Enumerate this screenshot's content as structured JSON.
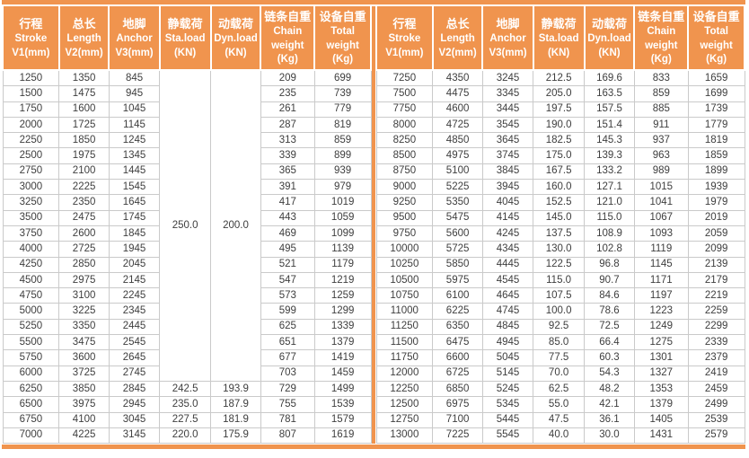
{
  "table": {
    "header_columns": [
      {
        "lines": [
          "行程",
          "Stroke",
          "V1(mm)"
        ]
      },
      {
        "lines": [
          "总长",
          "Length",
          "V2(mm)"
        ]
      },
      {
        "lines": [
          "地脚",
          "Anchor",
          "V3(mm)"
        ]
      },
      {
        "lines": [
          "静载荷",
          "Sta.load",
          "(KN)"
        ]
      },
      {
        "lines": [
          "动载荷",
          "Dyn.load",
          "(KN)"
        ]
      },
      {
        "lines": [
          "链条自重",
          "Chain",
          "weight",
          "(Kg)"
        ]
      },
      {
        "lines": [
          "设备自重",
          "Total",
          "weight",
          "(Kg)"
        ]
      }
    ],
    "left": {
      "merged": {
        "sta_load": "250.0",
        "dyn_load": "200.0",
        "row_span": 20
      },
      "rows": [
        [
          "1250",
          "1350",
          "845",
          "",
          "",
          "209",
          "699"
        ],
        [
          "1500",
          "1475",
          "945",
          "",
          "",
          "235",
          "739"
        ],
        [
          "1750",
          "1600",
          "1045",
          "",
          "",
          "261",
          "779"
        ],
        [
          "2000",
          "1725",
          "1145",
          "",
          "",
          "287",
          "819"
        ],
        [
          "2250",
          "1850",
          "1245",
          "",
          "",
          "313",
          "859"
        ],
        [
          "2500",
          "1975",
          "1345",
          "",
          "",
          "339",
          "899"
        ],
        [
          "2750",
          "2100",
          "1445",
          "",
          "",
          "365",
          "939"
        ],
        [
          "3000",
          "2225",
          "1545",
          "",
          "",
          "391",
          "979"
        ],
        [
          "3250",
          "2350",
          "1645",
          "",
          "",
          "417",
          "1019"
        ],
        [
          "3500",
          "2475",
          "1745",
          "",
          "",
          "443",
          "1059"
        ],
        [
          "3750",
          "2600",
          "1845",
          "",
          "",
          "469",
          "1099"
        ],
        [
          "4000",
          "2725",
          "1945",
          "",
          "",
          "495",
          "1139"
        ],
        [
          "4250",
          "2850",
          "2045",
          "",
          "",
          "521",
          "1179"
        ],
        [
          "4500",
          "2975",
          "2145",
          "",
          "",
          "547",
          "1219"
        ],
        [
          "4750",
          "3100",
          "2245",
          "",
          "",
          "573",
          "1259"
        ],
        [
          "5000",
          "3225",
          "2345",
          "",
          "",
          "599",
          "1299"
        ],
        [
          "5250",
          "3350",
          "2445",
          "",
          "",
          "625",
          "1339"
        ],
        [
          "5500",
          "3475",
          "2545",
          "",
          "",
          "651",
          "1379"
        ],
        [
          "5750",
          "3600",
          "2645",
          "",
          "",
          "677",
          "1419"
        ],
        [
          "6000",
          "3725",
          "2745",
          "",
          "",
          "703",
          "1459"
        ],
        [
          "6250",
          "3850",
          "2845",
          "242.5",
          "193.9",
          "729",
          "1499"
        ],
        [
          "6500",
          "3975",
          "2945",
          "235.0",
          "187.9",
          "755",
          "1539"
        ],
        [
          "6750",
          "4100",
          "3045",
          "227.5",
          "181.9",
          "781",
          "1579"
        ],
        [
          "7000",
          "4225",
          "3145",
          "220.0",
          "175.9",
          "807",
          "1619"
        ]
      ]
    },
    "right": {
      "rows": [
        [
          "7250",
          "4350",
          "3245",
          "212.5",
          "169.6",
          "833",
          "1659"
        ],
        [
          "7500",
          "4475",
          "3345",
          "205.0",
          "163.5",
          "859",
          "1699"
        ],
        [
          "7750",
          "4600",
          "3445",
          "197.5",
          "157.5",
          "885",
          "1739"
        ],
        [
          "8000",
          "4725",
          "3545",
          "190.0",
          "151.4",
          "911",
          "1779"
        ],
        [
          "8250",
          "4850",
          "3645",
          "182.5",
          "145.3",
          "937",
          "1819"
        ],
        [
          "8500",
          "4975",
          "3745",
          "175.0",
          "139.3",
          "963",
          "1859"
        ],
        [
          "8750",
          "5100",
          "3845",
          "167.5",
          "133.2",
          "989",
          "1899"
        ],
        [
          "9000",
          "5225",
          "3945",
          "160.0",
          "127.1",
          "1015",
          "1939"
        ],
        [
          "9250",
          "5350",
          "4045",
          "152.5",
          "121.0",
          "1041",
          "1979"
        ],
        [
          "9500",
          "5475",
          "4145",
          "145.0",
          "115.0",
          "1067",
          "2019"
        ],
        [
          "9750",
          "5600",
          "4245",
          "137.5",
          "108.9",
          "1093",
          "2059"
        ],
        [
          "10000",
          "5725",
          "4345",
          "130.0",
          "102.8",
          "1119",
          "2099"
        ],
        [
          "10250",
          "5850",
          "4445",
          "122.5",
          "96.8",
          "1145",
          "2139"
        ],
        [
          "10500",
          "5975",
          "4545",
          "115.0",
          "90.7",
          "1171",
          "2179"
        ],
        [
          "10750",
          "6100",
          "4645",
          "107.5",
          "84.6",
          "1197",
          "2219"
        ],
        [
          "11000",
          "6225",
          "4745",
          "100.0",
          "78.6",
          "1223",
          "2259"
        ],
        [
          "11250",
          "6350",
          "4845",
          "92.5",
          "72.5",
          "1249",
          "2299"
        ],
        [
          "11500",
          "6475",
          "4945",
          "85.0",
          "66.4",
          "1275",
          "2339"
        ],
        [
          "11750",
          "6600",
          "5045",
          "77.5",
          "60.3",
          "1301",
          "2379"
        ],
        [
          "12000",
          "6725",
          "5145",
          "70.0",
          "54.3",
          "1327",
          "2419"
        ],
        [
          "12250",
          "6850",
          "5245",
          "62.5",
          "48.2",
          "1353",
          "2459"
        ],
        [
          "12500",
          "6975",
          "5345",
          "55.0",
          "42.1",
          "1379",
          "2499"
        ],
        [
          "12750",
          "7100",
          "5445",
          "47.5",
          "36.1",
          "1405",
          "2539"
        ],
        [
          "13000",
          "7225",
          "5545",
          "40.0",
          "30.0",
          "1431",
          "2579"
        ]
      ]
    }
  },
  "colors": {
    "accent_orange": "#F0944E",
    "cell_border_gray": "#CACACA",
    "data_text": "#3E3E3E",
    "header_text": "#FFFFFF"
  },
  "layout": {
    "column_widths_pct": [
      "15.3%",
      "13.6%",
      "13.7%",
      "13.9%",
      "13.6%",
      "14.6%",
      "15.3%"
    ]
  }
}
